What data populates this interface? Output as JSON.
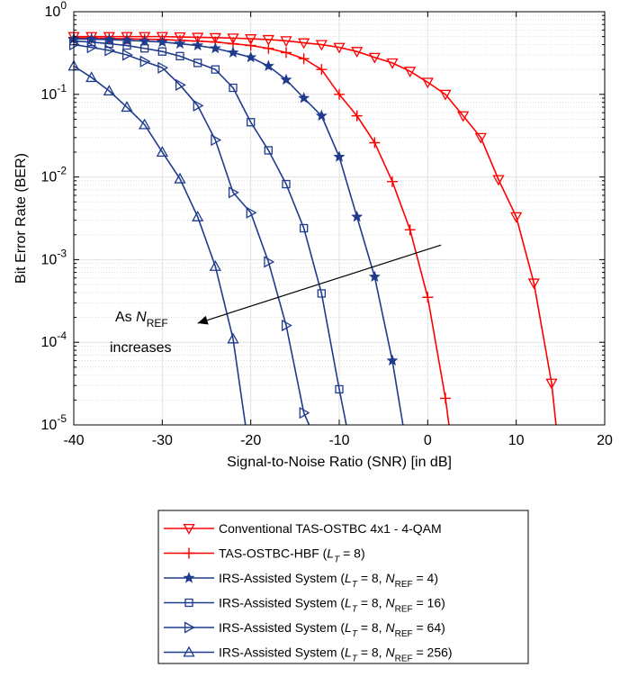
{
  "chart_data": {
    "type": "line",
    "xlabel": "Signal-to-Noise Ratio (SNR) [in dB]",
    "ylabel": "Bit Error Rate (BER)",
    "xlim": [
      -40,
      20
    ],
    "ylim": [
      1e-05,
      1
    ],
    "yscale": "log",
    "grid": true,
    "minor_grid": true,
    "legend_position": "below plot",
    "x_ticks": [
      -40,
      -30,
      -20,
      -10,
      0,
      10,
      20
    ],
    "x_tick_labels": [
      "-40",
      "-30",
      "-20",
      "-10",
      "0",
      "10",
      "20"
    ],
    "y_ticks": [
      1e-05,
      0.0001,
      0.001,
      0.01,
      0.1,
      1
    ],
    "y_tick_labels": [
      {
        "base": "10",
        "exp": "-5"
      },
      {
        "base": "10",
        "exp": "-4"
      },
      {
        "base": "10",
        "exp": "-3"
      },
      {
        "base": "10",
        "exp": "-2"
      },
      {
        "base": "10",
        "exp": "-1"
      },
      {
        "base": "10",
        "exp": "0"
      }
    ],
    "annotation": {
      "line1_prefix": "As ",
      "line1_var": "N",
      "line1_sub": "REF",
      "line2": "increases",
      "arrow_from": [
        1.5,
        0.0015
      ],
      "arrow_to": [
        -26,
        0.00017
      ]
    },
    "series": [
      {
        "name": "Conventional TAS-OSTBC 4x1 - 4-QAM",
        "legend": [
          {
            "t": "Conventional TAS-OSTBC 4x1 - 4-QAM"
          }
        ],
        "color": "#ff0000",
        "marker": "triangle-down",
        "x": [
          -40,
          -38,
          -36,
          -34,
          -32,
          -30,
          -28,
          -26,
          -24,
          -22,
          -20,
          -18,
          -16,
          -14,
          -12,
          -10,
          -8,
          -6,
          -4,
          -2,
          0,
          2,
          4,
          6,
          8,
          10,
          12,
          14,
          14.5
        ],
        "y": [
          0.5,
          0.5,
          0.5,
          0.5,
          0.5,
          0.5,
          0.495,
          0.49,
          0.485,
          0.48,
          0.47,
          0.46,
          0.445,
          0.42,
          0.4,
          0.37,
          0.33,
          0.28,
          0.24,
          0.19,
          0.14,
          0.1,
          0.055,
          0.03,
          0.0093,
          0.0033,
          0.00052,
          3.2e-05,
          1e-05
        ]
      },
      {
        "name": "TAS-OSTBC-HBF (L_T = 8)",
        "legend": [
          {
            "t": "TAS-OSTBC-HBF ("
          },
          {
            "t": "L",
            "i": true
          },
          {
            "t": "T",
            "sub": true,
            "i": true
          },
          {
            "t": " = 8)"
          }
        ],
        "color": "#ff0000",
        "marker": "plus",
        "x": [
          -40,
          -38,
          -36,
          -34,
          -32,
          -30,
          -28,
          -26,
          -24,
          -22,
          -20,
          -18,
          -16,
          -14,
          -12,
          -10,
          -8,
          -6,
          -4,
          -2,
          0,
          2,
          2.4
        ],
        "y": [
          0.48,
          0.48,
          0.475,
          0.47,
          0.465,
          0.46,
          0.45,
          0.44,
          0.43,
          0.41,
          0.39,
          0.36,
          0.32,
          0.27,
          0.2,
          0.1,
          0.055,
          0.026,
          0.0088,
          0.0023,
          0.00035,
          2.1e-05,
          1e-05
        ]
      },
      {
        "name": "IRS-Assisted System (L_T = 8, N_REF = 4)",
        "legend": [
          {
            "t": "IRS-Assisted System ("
          },
          {
            "t": "L",
            "i": true
          },
          {
            "t": "T",
            "sub": true,
            "i": true
          },
          {
            "t": " = 8, "
          },
          {
            "t": "N",
            "i": true
          },
          {
            "t": "REF",
            "sub": true
          },
          {
            "t": " = 4)"
          }
        ],
        "color": "#1f3b8c",
        "marker": "star",
        "x": [
          -40,
          -38,
          -36,
          -34,
          -32,
          -30,
          -28,
          -26,
          -24,
          -22,
          -20,
          -18,
          -16,
          -14,
          -12,
          -10,
          -8,
          -6,
          -4,
          -2.8
        ],
        "y": [
          0.47,
          0.465,
          0.46,
          0.45,
          0.44,
          0.43,
          0.41,
          0.39,
          0.36,
          0.32,
          0.28,
          0.22,
          0.15,
          0.09,
          0.055,
          0.0175,
          0.0033,
          0.00062,
          6e-05,
          1e-05
        ]
      },
      {
        "name": "IRS-Assisted System (L_T = 8, N_REF = 16)",
        "legend": [
          {
            "t": "IRS-Assisted System ("
          },
          {
            "t": "L",
            "i": true
          },
          {
            "t": "T",
            "sub": true,
            "i": true
          },
          {
            "t": " = 8, "
          },
          {
            "t": "N",
            "i": true
          },
          {
            "t": "REF",
            "sub": true
          },
          {
            "t": " = 16)"
          }
        ],
        "color": "#1f3b8c",
        "marker": "square",
        "x": [
          -40,
          -38,
          -36,
          -34,
          -32,
          -30,
          -28,
          -26,
          -24,
          -22,
          -20,
          -18,
          -16,
          -14,
          -12,
          -10,
          -9.2
        ],
        "y": [
          0.44,
          0.43,
          0.41,
          0.39,
          0.36,
          0.33,
          0.29,
          0.24,
          0.2,
          0.12,
          0.046,
          0.021,
          0.0082,
          0.0024,
          0.00039,
          2.7e-05,
          1e-05
        ]
      },
      {
        "name": "IRS-Assisted System (L_T = 8, N_REF = 64)",
        "legend": [
          {
            "t": "IRS-Assisted System ("
          },
          {
            "t": "L",
            "i": true
          },
          {
            "t": "T",
            "sub": true,
            "i": true
          },
          {
            "t": " = 8, "
          },
          {
            "t": "N",
            "i": true
          },
          {
            "t": "REF",
            "sub": true
          },
          {
            "t": " = 64)"
          }
        ],
        "color": "#1f3b8c",
        "marker": "triangle-right",
        "x": [
          -40,
          -38,
          -36,
          -34,
          -32,
          -30,
          -28,
          -26,
          -24,
          -22,
          -20,
          -18,
          -16,
          -14,
          -13.4
        ],
        "y": [
          0.4,
          0.37,
          0.34,
          0.3,
          0.25,
          0.21,
          0.13,
          0.073,
          0.028,
          0.0065,
          0.0037,
          0.00094,
          0.00016,
          1.4e-05,
          1e-05
        ]
      },
      {
        "name": "IRS-Assisted System (L_T = 8, N_REF = 256)",
        "legend": [
          {
            "t": "IRS-Assisted System ("
          },
          {
            "t": "L",
            "i": true
          },
          {
            "t": "T",
            "sub": true,
            "i": true
          },
          {
            "t": " = 8, "
          },
          {
            "t": "N",
            "i": true
          },
          {
            "t": "REF",
            "sub": true
          },
          {
            "t": " = 256)"
          }
        ],
        "color": "#1f3b8c",
        "marker": "triangle-up",
        "x": [
          -40,
          -38,
          -36,
          -34,
          -32,
          -30,
          -28,
          -26,
          -24,
          -22,
          -20.6
        ],
        "y": [
          0.22,
          0.16,
          0.11,
          0.07,
          0.043,
          0.02,
          0.0095,
          0.0033,
          0.00083,
          0.00011,
          1e-05
        ]
      }
    ]
  }
}
